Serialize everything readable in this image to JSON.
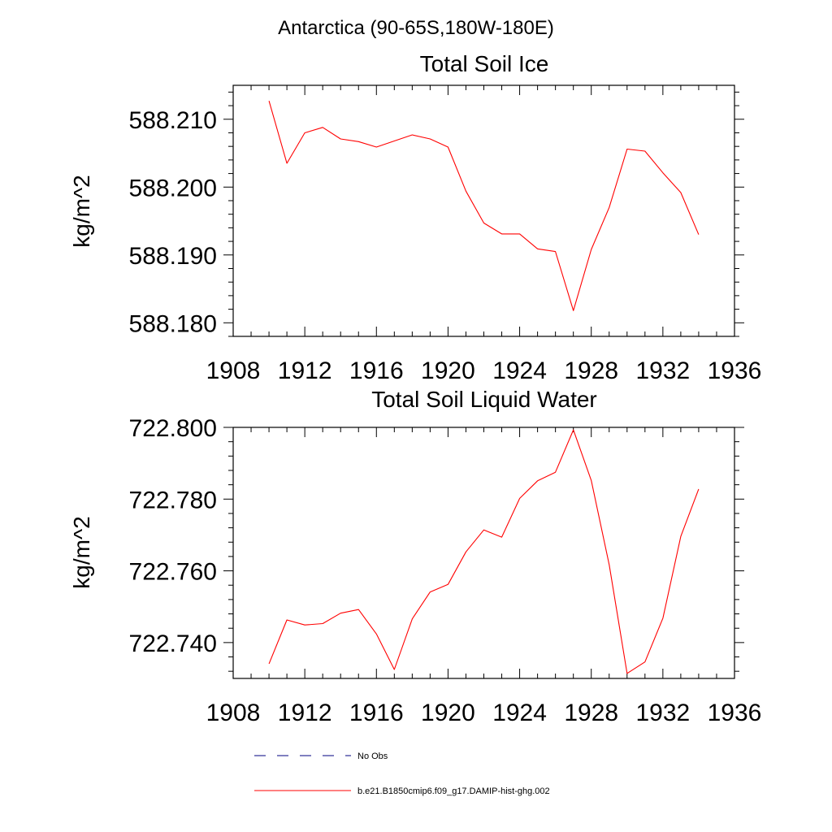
{
  "suptitle": "Antarctica (90-65S,180W-180E)",
  "colors": {
    "model": "#ff0000",
    "obs": "#000080",
    "axis": "#000000"
  },
  "chart_data": [
    {
      "type": "line",
      "title": "Total Soil Ice",
      "ylabel": "kg/m^2",
      "xlabel": "",
      "xlim": [
        1908,
        1936
      ],
      "ylim": [
        588.178,
        588.215
      ],
      "xticks": [
        1908,
        1912,
        1916,
        1920,
        1924,
        1928,
        1932,
        1936
      ],
      "xtick_labels": [
        "1908",
        "1912",
        "1916",
        "1920",
        "1924",
        "1928",
        "1932",
        "1936"
      ],
      "yticks": [
        588.18,
        588.19,
        588.2,
        588.21
      ],
      "ytick_labels": [
        "588.180",
        "588.190",
        "588.200",
        "588.210"
      ],
      "x": [
        1910,
        1911,
        1912,
        1913,
        1914,
        1915,
        1916,
        1917,
        1918,
        1919,
        1920,
        1921,
        1922,
        1923,
        1924,
        1925,
        1926,
        1927,
        1928,
        1929,
        1930,
        1931,
        1932,
        1933,
        1934
      ],
      "series": [
        {
          "name": "b.e21.B1850cmip6.f09_g17.DAMIP-hist-ghg.002",
          "values": [
            588.2127,
            588.2035,
            588.208,
            588.2088,
            588.2071,
            588.2067,
            588.2059,
            588.2068,
            588.2077,
            588.2071,
            588.2059,
            588.1994,
            588.1947,
            588.1931,
            588.1931,
            588.1909,
            588.1905,
            588.1818,
            588.1908,
            588.197,
            588.2056,
            588.2053,
            588.2021,
            588.1992,
            588.193
          ]
        }
      ]
    },
    {
      "type": "line",
      "title": "Total Soil Liquid Water",
      "ylabel": "kg/m^2",
      "xlabel": "",
      "xlim": [
        1908,
        1936
      ],
      "ylim": [
        722.73,
        722.8
      ],
      "xticks": [
        1908,
        1912,
        1916,
        1920,
        1924,
        1928,
        1932,
        1936
      ],
      "xtick_labels": [
        "1908",
        "1912",
        "1916",
        "1920",
        "1924",
        "1928",
        "1932",
        "1936"
      ],
      "yticks": [
        722.74,
        722.76,
        722.78,
        722.8
      ],
      "ytick_labels": [
        "722.740",
        "722.760",
        "722.780",
        "722.800"
      ],
      "x": [
        1910,
        1911,
        1912,
        1913,
        1914,
        1915,
        1916,
        1917,
        1918,
        1919,
        1920,
        1921,
        1922,
        1923,
        1924,
        1925,
        1926,
        1927,
        1928,
        1929,
        1930,
        1931,
        1932,
        1933,
        1934
      ],
      "series": [
        {
          "name": "b.e21.B1850cmip6.f09_g17.DAMIP-hist-ghg.002",
          "values": [
            722.7341,
            722.7463,
            722.7449,
            722.7453,
            722.7482,
            722.7492,
            722.7424,
            722.7325,
            722.7466,
            722.7541,
            722.7562,
            722.7653,
            722.7714,
            722.7694,
            722.7802,
            722.7851,
            722.7875,
            722.7993,
            722.7852,
            722.7617,
            722.7314,
            722.7346,
            722.7468,
            722.7696,
            722.7828
          ]
        }
      ]
    }
  ],
  "legend": [
    {
      "label": "No Obs",
      "style": "dashed",
      "color": "#000080"
    },
    {
      "label": "b.e21.B1850cmip6.f09_g17.DAMIP-hist-ghg.002",
      "style": "solid",
      "color": "#ff0000"
    }
  ]
}
